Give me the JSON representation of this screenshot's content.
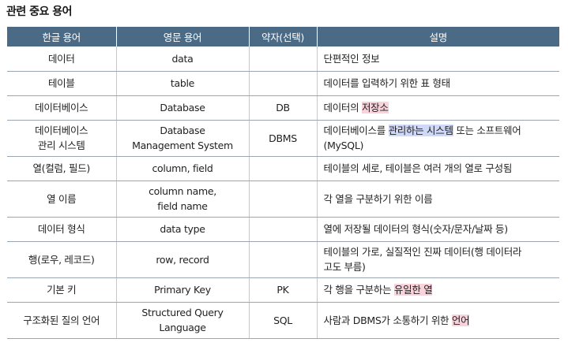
{
  "title": "관련 중요 용어",
  "headers": [
    "한글 용어",
    "영문 용어",
    "약자(선택)",
    "설명"
  ],
  "colors": {
    "header_bg": "#4a6a86",
    "highlight_pink": "#f9d3dc",
    "highlight_blue": "#cfd9f7"
  },
  "rows": [
    {
      "korean": "데이터",
      "english": "data",
      "abbr": "",
      "desc": [
        {
          "text": "단편적인 정보"
        }
      ]
    },
    {
      "korean": "테이블",
      "english": "table",
      "abbr": "",
      "desc": [
        {
          "text": "데이터를 입력하기 위한 표 형태"
        }
      ]
    },
    {
      "korean": "데이터베이스",
      "english": "Database",
      "abbr": "DB",
      "desc": [
        {
          "text": "데이터의 "
        },
        {
          "text": "저장소",
          "hl": "pink"
        }
      ]
    },
    {
      "korean": "데이터베이스\n관리 시스템",
      "english": "Database\nManagement System",
      "abbr": "DBMS",
      "desc": [
        {
          "text": "데이터베이스를 "
        },
        {
          "text": "관리하는 시스템",
          "hl": "blue"
        },
        {
          "text": " 또는 소프트웨어\n(MySQL)"
        }
      ]
    },
    {
      "korean": "열(컬럼, 필드)",
      "english": "column, field",
      "abbr": "",
      "desc": [
        {
          "text": "테이블의 세로, 테이블은 여러 개의 열로 구성됨"
        }
      ]
    },
    {
      "korean": "열 이름",
      "english": "column name,\nfield name",
      "abbr": "",
      "desc": [
        {
          "text": "각 열을 구분하기 위한 이름"
        }
      ]
    },
    {
      "korean": "데이터 형식",
      "english": "data type",
      "abbr": "",
      "desc": [
        {
          "text": "열에 저장될 데이터의 형식(숫자/문자/날짜 등)"
        }
      ]
    },
    {
      "korean": "행(로우, 레코드)",
      "english": "row, record",
      "abbr": "",
      "desc": [
        {
          "text": "테이블의 가로, 실질적인 진짜 데이터(행 데이터라\n고도 부름)"
        }
      ]
    },
    {
      "korean": "기본 키",
      "english": "Primary Key",
      "abbr": "PK",
      "desc": [
        {
          "text": "각 행을 구분하는 "
        },
        {
          "text": "유일한 열",
          "hl": "pink"
        }
      ]
    },
    {
      "korean": "구조화된 질의 언어",
      "english": "Structured Query\nLanguage",
      "abbr": "SQL",
      "desc": [
        {
          "text": "사람과 DBMS가 소통하기 위한 "
        },
        {
          "text": "언어",
          "hl": "pink"
        }
      ]
    }
  ]
}
